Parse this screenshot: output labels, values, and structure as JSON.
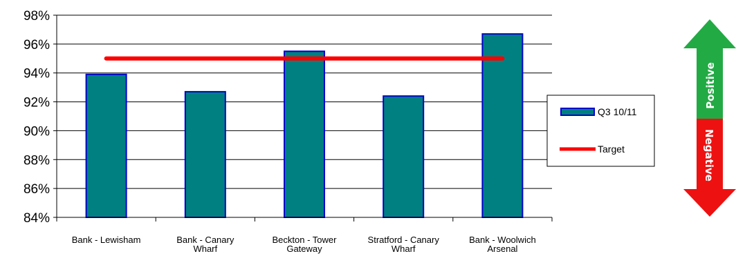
{
  "chart_data": {
    "type": "bar",
    "categories": [
      [
        "Bank - Lewisham"
      ],
      [
        "Bank - Canary",
        "Wharf"
      ],
      [
        "Beckton - Tower",
        "Gateway"
      ],
      [
        "Stratford - Canary",
        "Wharf"
      ],
      [
        "Bank - Woolwich",
        "Arsenal"
      ]
    ],
    "series": [
      {
        "name": "Q3 10/11",
        "type": "bar",
        "values": [
          93.9,
          92.7,
          95.5,
          92.4,
          96.7
        ],
        "color": "#008080",
        "edge_color": "#0000CC"
      },
      {
        "name": "Target",
        "type": "line",
        "values": [
          95,
          95,
          95,
          95,
          95
        ],
        "color": "#FF0000"
      }
    ],
    "yticks": [
      "84%",
      "86%",
      "88%",
      "90%",
      "92%",
      "94%",
      "96%",
      "98%"
    ],
    "ylim": [
      84,
      98
    ],
    "grid": true,
    "legend_position": "right"
  },
  "indicator": {
    "positive_label": "Positive",
    "negative_label": "Negative",
    "positive_color": "#22AA44",
    "negative_color": "#EE1111"
  }
}
